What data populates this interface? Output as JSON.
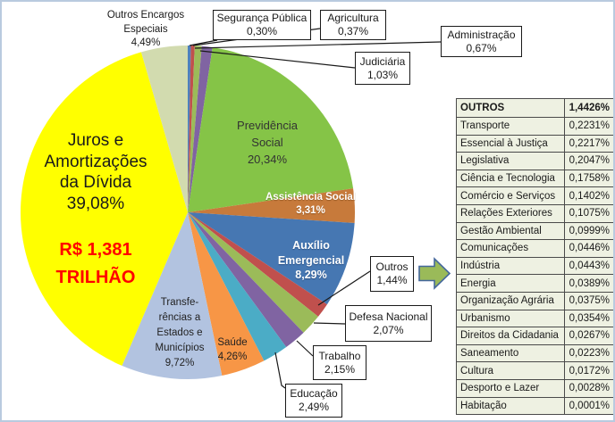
{
  "frame": {
    "border_color": "#b9cadf",
    "background": "#ffffff"
  },
  "chart_data": {
    "type": "pie",
    "start": "12-oclock",
    "direction": "clockwise",
    "unit": "%",
    "slices": [
      {
        "label": "Segurança Pública",
        "value": 0.3,
        "pct_label": "0,30%",
        "color": "#4F81BD"
      },
      {
        "label": "Agricultura",
        "value": 0.37,
        "pct_label": "0,37%",
        "color": "#C0504D"
      },
      {
        "label": "Administração",
        "value": 0.67,
        "pct_label": "0,67%",
        "color": "#9BBB59"
      },
      {
        "label": "Judiciária",
        "value": 1.03,
        "pct_label": "1,03%",
        "color": "#8064A2"
      },
      {
        "label": "Previdência Social",
        "value": 20.34,
        "pct_label": "20,34%",
        "color": "#85C447"
      },
      {
        "label": "Assistência Social",
        "value": 3.31,
        "pct_label": "3,31%",
        "color": "#C77A3B"
      },
      {
        "label": "Auxílio Emergencial",
        "value": 8.29,
        "pct_label": "8,29%",
        "color": "#4677B2"
      },
      {
        "label": "Outros",
        "value": 1.44,
        "pct_label": "1,44%",
        "color": "#C0504D"
      },
      {
        "label": "Defesa Nacional",
        "value": 2.07,
        "pct_label": "2,07%",
        "color": "#9BBB59"
      },
      {
        "label": "Trabalho",
        "value": 2.15,
        "pct_label": "2,15%",
        "color": "#8064A2"
      },
      {
        "label": "Educação",
        "value": 2.49,
        "pct_label": "2,49%",
        "color": "#4BACC6"
      },
      {
        "label": "Saúde",
        "value": 4.26,
        "pct_label": "4,26%",
        "color": "#F79646"
      },
      {
        "label": "Transferências a Estados e Municípios",
        "value": 9.72,
        "pct_label": "9,72%",
        "color": "#B2C3E0"
      },
      {
        "label": "Juros e Amortizações da Dívida",
        "value": 39.08,
        "pct_label": "39,08%",
        "color": "#FFFF00"
      },
      {
        "label": "Outros Encargos Especiais",
        "value": 4.49,
        "pct_label": "4,49%",
        "color": "#D2DBAF"
      }
    ],
    "annotations": {
      "total": {
        "line1": "R$ 1,381",
        "line2": "TRILHÃO",
        "color": "#FF0000"
      }
    },
    "slice_label_lines": {
      "juros": {
        "l1": "Juros e",
        "l2": "Amortizações",
        "l3": "da Dívida",
        "pct": "39,08%"
      },
      "previdencia": {
        "l1": "Previdência",
        "l2": "Social",
        "pct": "20,34%"
      },
      "assistencia": {
        "l1": "Assistência Social",
        "pct": "3,31%"
      },
      "auxilio": {
        "l1": "Auxílio",
        "l2": "Emergencial",
        "pct": "8,29%"
      },
      "transferencias": {
        "l1": "Transfe-",
        "l2": "rências a",
        "l3": "Estados e",
        "l4": "Municípios",
        "pct": "9,72%"
      },
      "saude": {
        "l1": "Saúde",
        "pct": "4,26%"
      },
      "outros_encargos": {
        "l1": "Outros Encargos",
        "l2": "Especiais",
        "pct": "4,49%"
      }
    },
    "outros_breakdown": {
      "header": {
        "name": "OUTROS",
        "value": "1,4426%"
      },
      "rows": [
        {
          "name": "Transporte",
          "value": "0,2231%"
        },
        {
          "name": "Essencial à Justiça",
          "value": "0,2217%"
        },
        {
          "name": "Legislativa",
          "value": "0,2047%"
        },
        {
          "name": "Ciência e Tecnologia",
          "value": "0,1758%"
        },
        {
          "name": "Comércio e Serviços",
          "value": "0,1402%"
        },
        {
          "name": "Relações Exteriores",
          "value": "0,1075%"
        },
        {
          "name": "Gestão Ambiental",
          "value": "0,0999%"
        },
        {
          "name": "Comunicações",
          "value": "0,0446%"
        },
        {
          "name": "Indústria",
          "value": "0,0443%"
        },
        {
          "name": "Energia",
          "value": "0,0389%"
        },
        {
          "name": "Organização Agrária",
          "value": "0,0375%"
        },
        {
          "name": "Urbanismo",
          "value": "0,0354%"
        },
        {
          "name": "Direitos da Cidadania",
          "value": "0,0267%"
        },
        {
          "name": "Saneamento",
          "value": "0,0223%"
        },
        {
          "name": "Cultura",
          "value": "0,0172%"
        },
        {
          "name": "Desporto e Lazer",
          "value": "0,0028%"
        },
        {
          "name": "Habitação",
          "value": "0,0001%"
        }
      ]
    },
    "arrow": {
      "fill": "#9ABA59",
      "stroke": "#44679C"
    }
  }
}
